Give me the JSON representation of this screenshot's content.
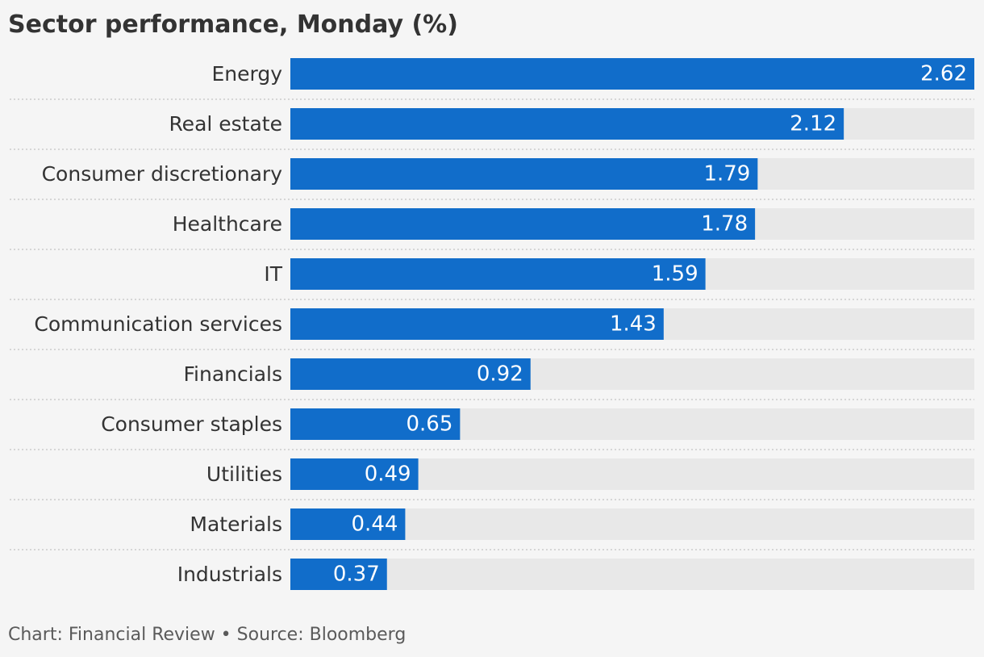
{
  "title": "Sector performance, Monday (%)",
  "footer": "Chart: Financial Review • Source: Bloomberg",
  "colors": {
    "bar": "#116dca",
    "track": "#e8e8e8",
    "background": "#f5f5f5",
    "separator": "#c4c4c4",
    "value_label": "#ffffff",
    "category_label": "#333333"
  },
  "chart_data": {
    "type": "bar",
    "orientation": "horizontal",
    "categories": [
      "Energy",
      "Real estate",
      "Consumer discretionary",
      "Healthcare",
      "IT",
      "Communication services",
      "Financials",
      "Consumer staples",
      "Utilities",
      "Materials",
      "Industrials"
    ],
    "values": [
      2.62,
      2.12,
      1.79,
      1.78,
      1.59,
      1.43,
      0.92,
      0.65,
      0.49,
      0.44,
      0.37
    ],
    "value_labels": [
      "2.62",
      "2.12",
      "1.79",
      "1.78",
      "1.59",
      "1.43",
      "0.92",
      "0.65",
      "0.49",
      "0.44",
      "0.37"
    ],
    "title": "Sector performance, Monday (%)",
    "xlabel": "",
    "ylabel": "",
    "xlim": [
      0,
      2.62
    ],
    "grid": false,
    "legend": "none",
    "data_labels": "inside-end"
  }
}
